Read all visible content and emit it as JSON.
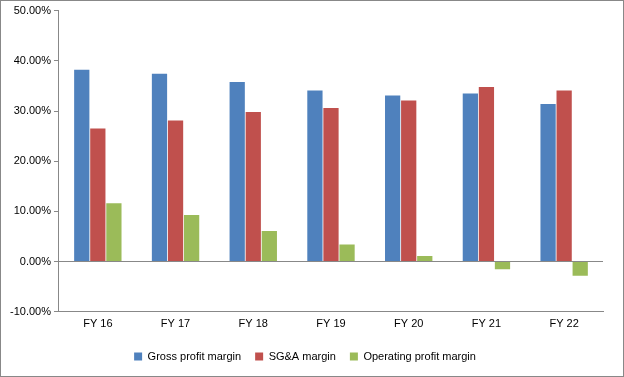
{
  "chart_data": {
    "type": "bar",
    "categories": [
      "FY 16",
      "FY 17",
      "FY 18",
      "FY 19",
      "FY 20",
      "FY 21",
      "FY 22"
    ],
    "series": [
      {
        "name": "Gross profit margin",
        "color": "#4F81BD",
        "values": [
          38.2,
          37.4,
          35.8,
          34.1,
          33.1,
          33.5,
          31.4
        ]
      },
      {
        "name": "SG&A margin",
        "color": "#C0504D",
        "values": [
          26.5,
          28.1,
          29.8,
          30.6,
          32.1,
          34.8,
          34.1
        ]
      },
      {
        "name": "Operating profit margin",
        "color": "#9BBB59",
        "values": [
          11.6,
          9.3,
          6.1,
          3.4,
          1.1,
          -1.5,
          -2.8
        ]
      }
    ],
    "ylim": [
      -10,
      50
    ],
    "yticks": [
      {
        "value": -10,
        "label": "-10.00%"
      },
      {
        "value": 0,
        "label": "0.00%"
      },
      {
        "value": 10,
        "label": "10.00%"
      },
      {
        "value": 20,
        "label": "20.00%"
      },
      {
        "value": 30,
        "label": "30.00%"
      },
      {
        "value": 40,
        "label": "40.00%"
      },
      {
        "value": 50,
        "label": "50.00%"
      }
    ],
    "grid": false,
    "legend": "bottom"
  }
}
